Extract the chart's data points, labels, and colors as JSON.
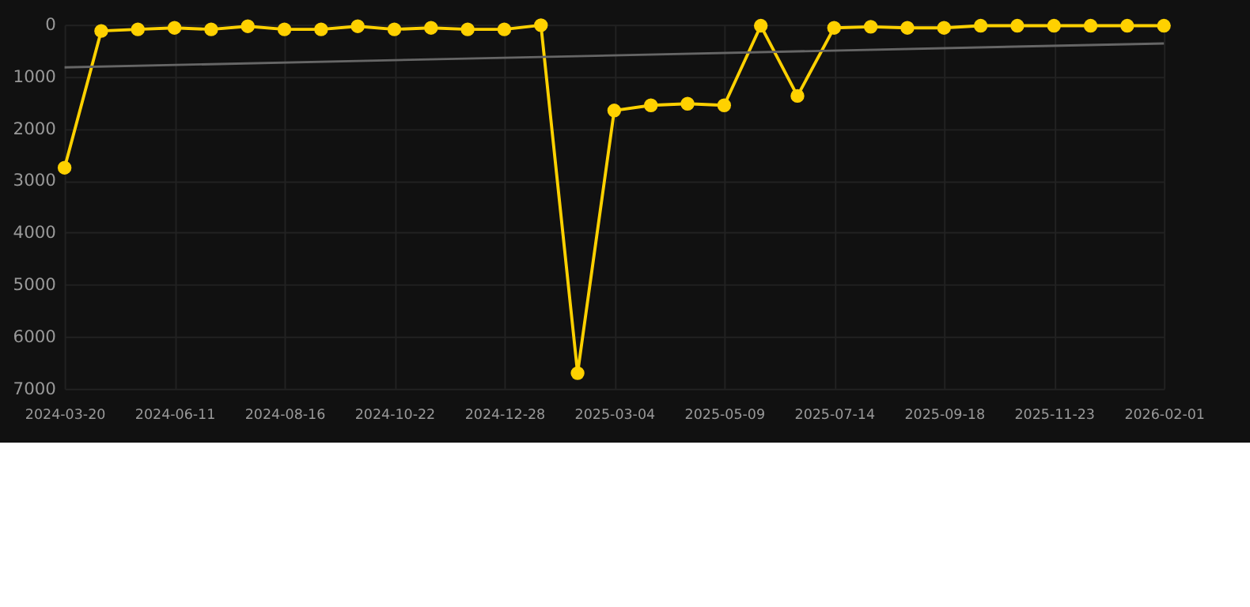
{
  "chart_data": {
    "type": "line",
    "categories": [
      "2024-03-20",
      null,
      null,
      "2024-06-11",
      null,
      null,
      "2024-08-16",
      null,
      null,
      "2024-10-22",
      null,
      null,
      "2024-12-28",
      null,
      null,
      "2025-03-04",
      null,
      null,
      "2025-05-09",
      null,
      null,
      "2025-07-14",
      null,
      null,
      "2025-09-18",
      null,
      null,
      "2025-11-23",
      null,
      null,
      "2026-02-01"
    ],
    "series": [
      {
        "color": "#ffd100",
        "values": [
          2750,
          120,
          90,
          60,
          90,
          30,
          90,
          90,
          30,
          90,
          60,
          90,
          90,
          10,
          6700,
          1650,
          1550,
          1520,
          1550,
          20,
          1370,
          60,
          40,
          60,
          60,
          20,
          20,
          20,
          20,
          20,
          20
        ]
      },
      {
        "type": "line",
        "color": "#666666",
        "values": [
          820,
          null,
          null,
          null,
          null,
          null,
          null,
          null,
          null,
          null,
          null,
          null,
          null,
          null,
          null,
          null,
          null,
          null,
          null,
          null,
          null,
          null,
          null,
          null,
          null,
          null,
          null,
          null,
          null,
          null,
          360
        ],
        "marker": "none"
      }
    ],
    "ylim": [
      7000,
      0
    ],
    "yticks": [
      0,
      1000,
      2000,
      3000,
      4000,
      5000,
      6000,
      7000
    ],
    "grid": true,
    "marker": "circle",
    "line_style": "solid"
  }
}
